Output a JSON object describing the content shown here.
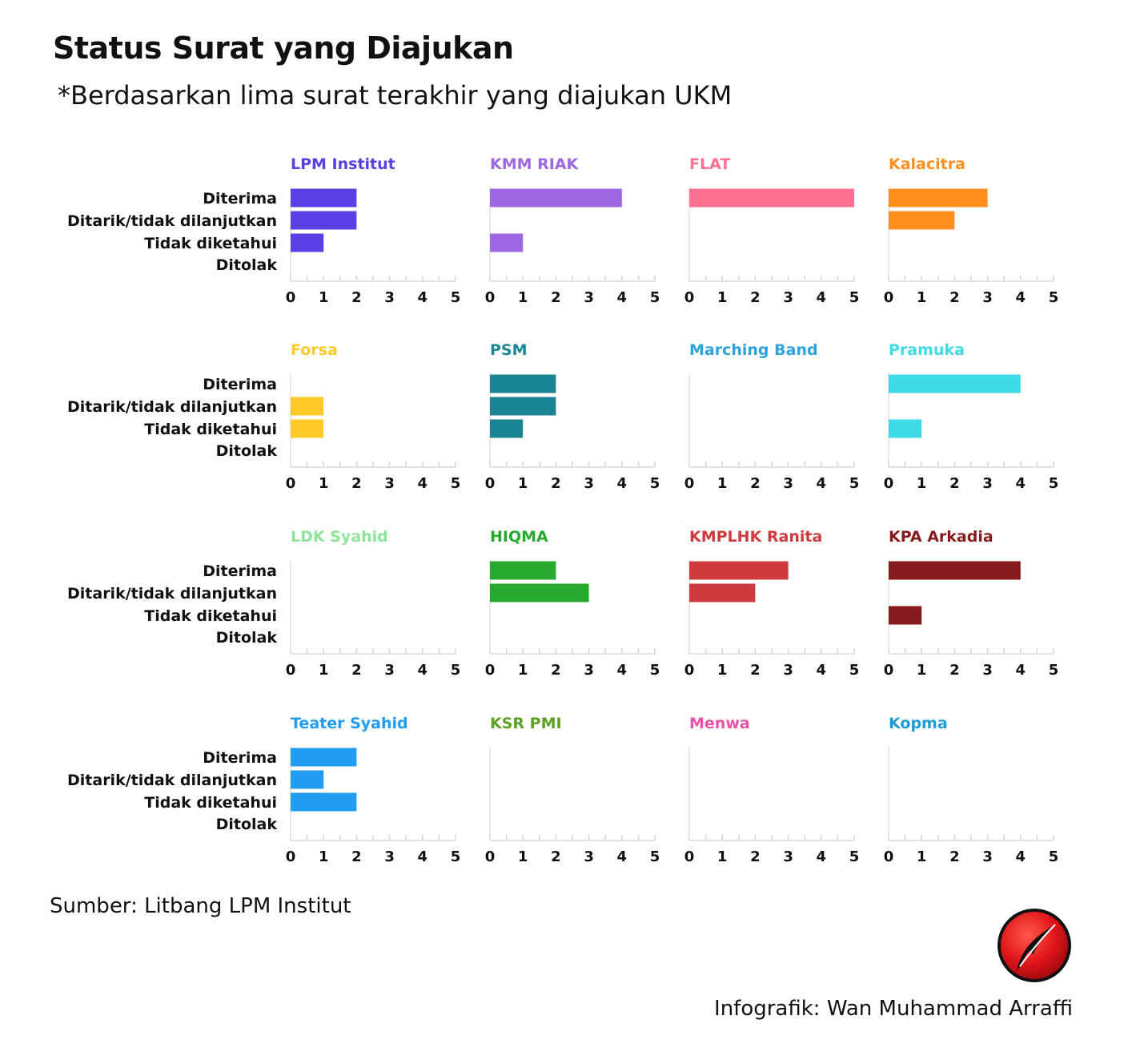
{
  "header": {
    "title": "Status Surat yang Diajukan",
    "subtitle": "*Berdasarkan lima surat terakhir yang diajukan UKM"
  },
  "footer": {
    "source": "Sumber: Litbang LPM Institut",
    "credit": "Infografik: Wan Muhammad Arraffi",
    "logo_icon": "quill-pen-red-circle-logo"
  },
  "chart_data": {
    "type": "bar",
    "orientation": "horizontal",
    "layout": "small-multiples-4x4",
    "categories": [
      "Diterima",
      "Ditarik/tidak dilanjutkan",
      "Tidak diketahui",
      "Ditolak"
    ],
    "xlim": [
      0,
      5
    ],
    "xticks": [
      0,
      1,
      2,
      3,
      4,
      5
    ],
    "grid": false,
    "panels": [
      {
        "name": "LPM Institut",
        "color": "#5b3ee6",
        "values": [
          2,
          2,
          1,
          0
        ]
      },
      {
        "name": "KMM RIAK",
        "color": "#9e66e3",
        "values": [
          4,
          0,
          1,
          0
        ]
      },
      {
        "name": "FLAT",
        "color": "#ff7191",
        "values": [
          5,
          0,
          0,
          0
        ]
      },
      {
        "name": "Kalacitra",
        "color": "#ff9020",
        "values": [
          3,
          2,
          0,
          0
        ]
      },
      {
        "name": "Forsa",
        "color": "#ffc927",
        "values": [
          0,
          1,
          1,
          0
        ]
      },
      {
        "name": "PSM",
        "color": "#1b8594",
        "values": [
          2,
          2,
          1,
          0
        ]
      },
      {
        "name": "Marching Band",
        "color": "#2ca3dc",
        "values": [
          0,
          0,
          0,
          0
        ]
      },
      {
        "name": "Pramuka",
        "color": "#3edbe7",
        "values": [
          4,
          0,
          1,
          0
        ]
      },
      {
        "name": "LDK Syahid",
        "color": "#8fe39b",
        "values": [
          0,
          0,
          0,
          0
        ]
      },
      {
        "name": "HIQMA",
        "color": "#25aa2d",
        "values": [
          2,
          3,
          0,
          0
        ]
      },
      {
        "name": "KMPLHK Ranita",
        "color": "#cf3a3e",
        "values": [
          3,
          2,
          0,
          0
        ]
      },
      {
        "name": "KPA Arkadia",
        "color": "#861b1e",
        "values": [
          4,
          0,
          1,
          0
        ]
      },
      {
        "name": "Teater Syahid",
        "color": "#219cf3",
        "values": [
          2,
          1,
          2,
          0
        ]
      },
      {
        "name": "KSR PMI",
        "color": "#5aa121",
        "values": [
          0,
          0,
          0,
          0
        ]
      },
      {
        "name": "Menwa",
        "color": "#e851a8",
        "values": [
          0,
          0,
          0,
          0
        ]
      },
      {
        "name": "Kopma",
        "color": "#1f9bd3",
        "values": [
          0,
          0,
          0,
          0
        ]
      }
    ]
  }
}
